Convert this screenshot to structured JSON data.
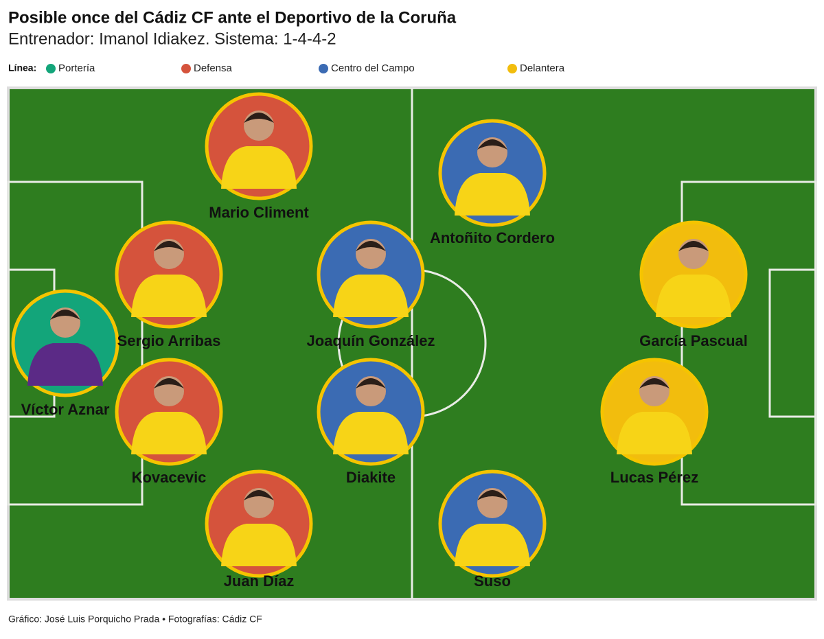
{
  "header": {
    "title": "Posible once del Cádiz CF ante el Deportivo de la Coruña",
    "subtitle": "Entrenador: Imanol Idiakez. Sistema: 1-4-4-2"
  },
  "legend": {
    "label": "Línea:",
    "lines": [
      {
        "name": "Portería",
        "color": "#13a57a",
        "players": [
          "Víctor Aznar"
        ]
      },
      {
        "name": "Defensa",
        "color": "#d5533c",
        "players": [
          "Mario Climent",
          "Sergio Arribas",
          "Kovacevic",
          "Juan Díaz"
        ]
      },
      {
        "name": "Centro del Campo",
        "color": "#3b6bb3",
        "players": [
          "Antoñito Cordero",
          "Joaquín González",
          "Diakite",
          "Suso"
        ]
      },
      {
        "name": "Delantera",
        "color": "#f2bd0d",
        "players": [
          "García Pascual",
          "Lucas Pérez"
        ]
      }
    ]
  },
  "footer": "Gráfico: José Luis Porquicho Prada • Fotografías: Cádiz CF"
}
